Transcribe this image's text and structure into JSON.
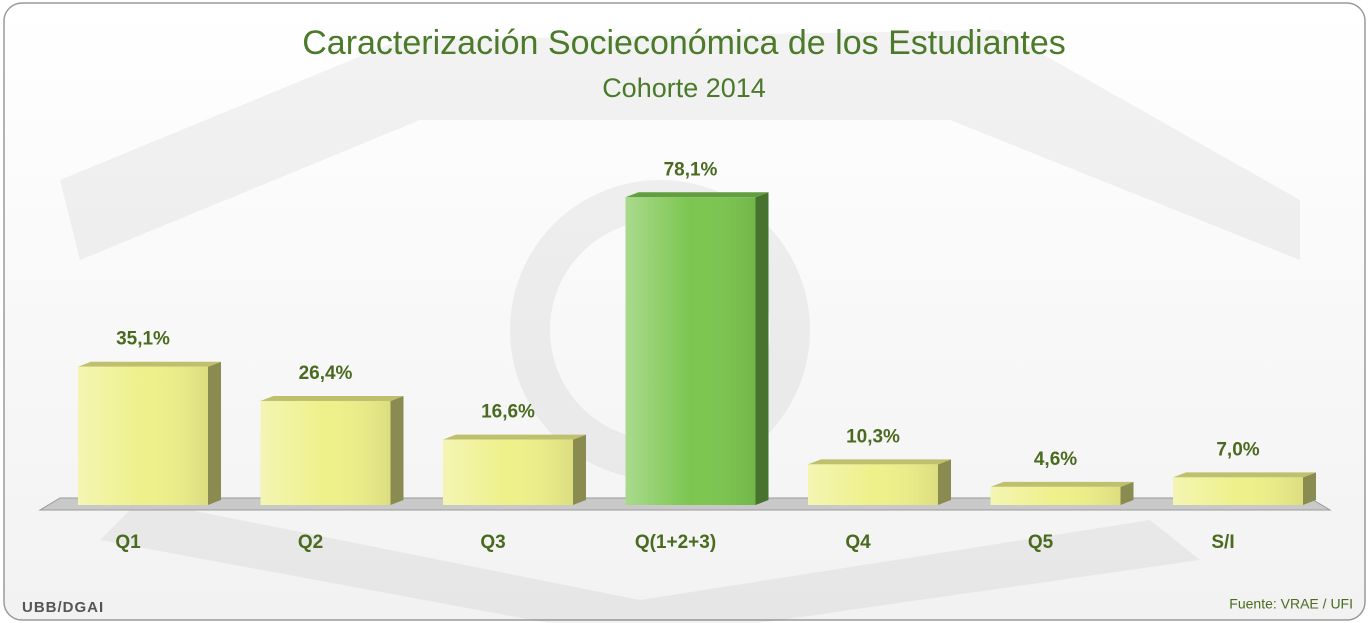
{
  "chart_data": {
    "type": "bar3d",
    "title": "Caracterización Socieconómica de los Estudiantes",
    "subtitle": "Cohorte 2014",
    "categories": [
      "Q1",
      "Q2",
      "Q3",
      "Q(1+2+3)",
      "Q4",
      "Q5",
      "S/I"
    ],
    "values": [
      35.1,
      26.4,
      16.6,
      78.1,
      10.3,
      4.6,
      7.0
    ],
    "value_labels": [
      "35,1%",
      "26,4%",
      "16,6%",
      "78,1%",
      "10,3%",
      "4,6%",
      "7,0%"
    ],
    "colors": [
      "#eef08a",
      "#eef08a",
      "#eef08a",
      "#7cc650",
      "#eef08a",
      "#eef08a",
      "#eef08a"
    ],
    "footer_left": "UBB/DGAI",
    "source": "Fuente: VRAE / UFI"
  }
}
